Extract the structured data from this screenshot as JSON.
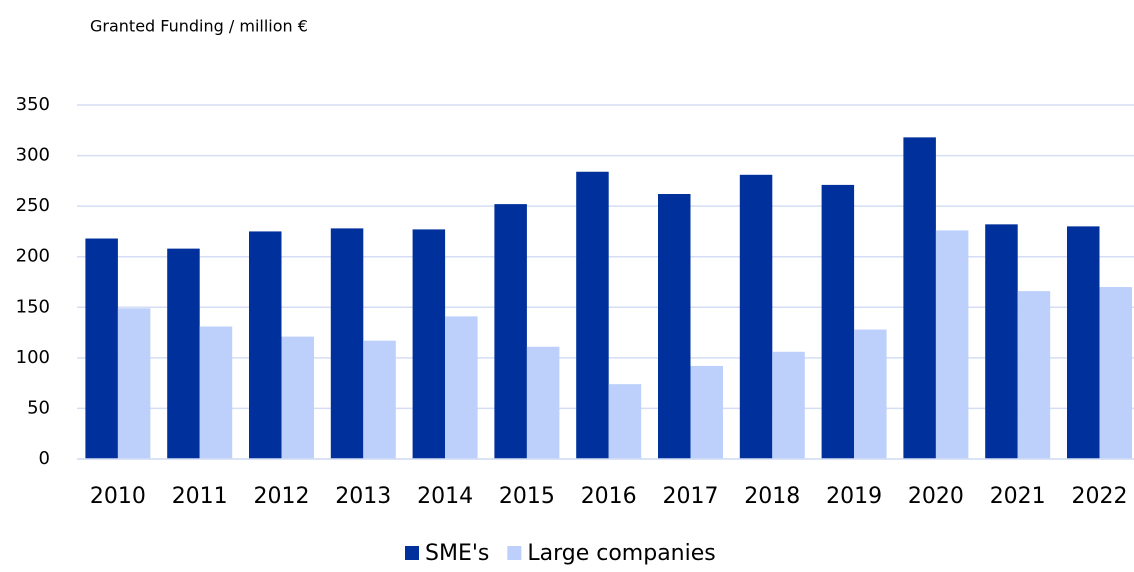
{
  "chart_data": {
    "type": "bar",
    "title": "Granted Funding / million €",
    "categories": [
      "2010",
      "2011",
      "2012",
      "2013",
      "2014",
      "2015",
      "2016",
      "2017",
      "2018",
      "2019",
      "2020",
      "2021",
      "2022"
    ],
    "series": [
      {
        "name": "SME's",
        "color": "#00309c",
        "values": [
          218,
          208,
          225,
          228,
          227,
          252,
          284,
          262,
          281,
          271,
          318,
          232,
          230
        ]
      },
      {
        "name": "Large companies",
        "color": "#bdd0fb",
        "values": [
          149,
          131,
          121,
          117,
          141,
          111,
          74,
          92,
          106,
          128,
          226,
          166,
          170
        ]
      }
    ],
    "ylim": [
      0,
      350
    ],
    "yticks": [
      0,
      50,
      100,
      150,
      200,
      250,
      300,
      350
    ],
    "grid": true,
    "legend": "bottom"
  }
}
